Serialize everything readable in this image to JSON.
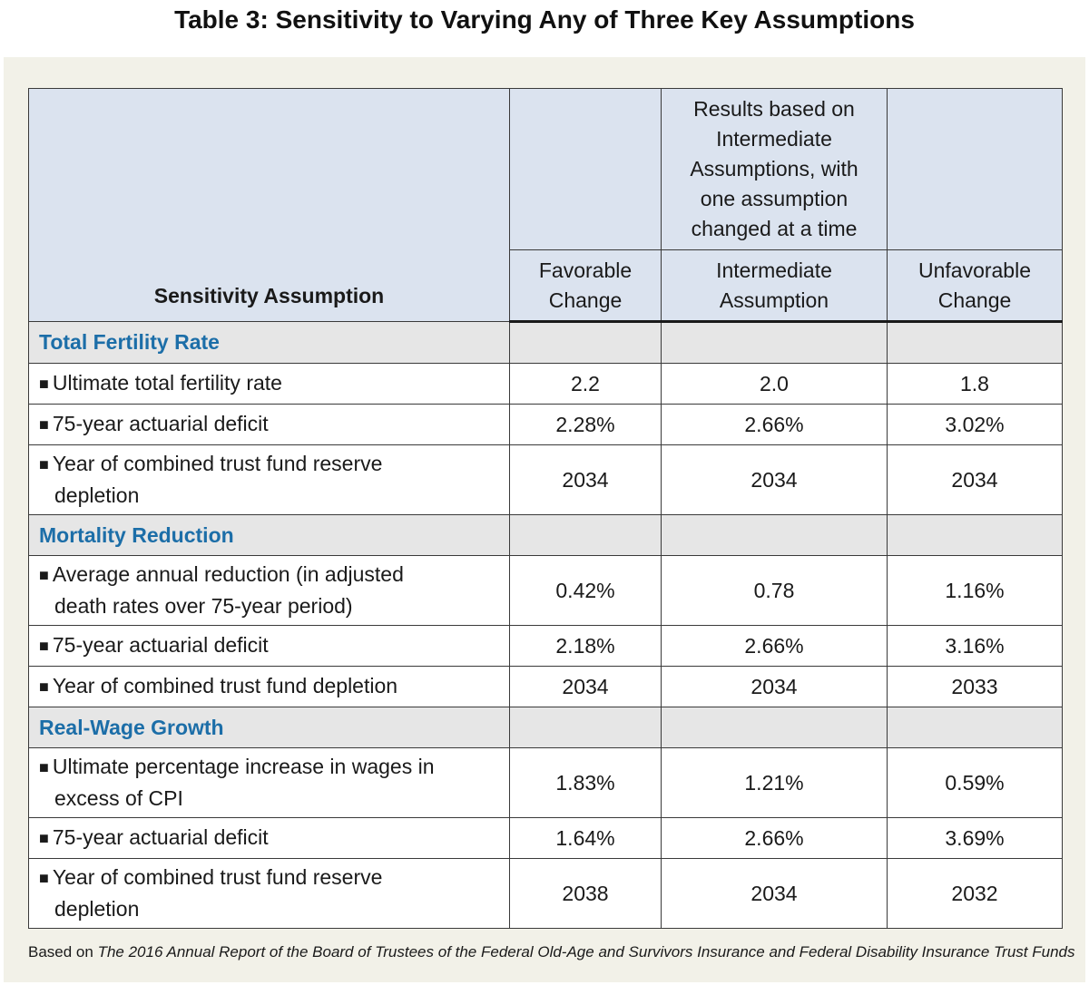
{
  "title": "Table 3: Sensitivity to Varying Any of Three Key Assumptions",
  "header": {
    "col1": "Sensitivity Assumption",
    "group_lines": [
      "Results based on",
      "Intermediate",
      "Assumptions, with",
      "one assumption",
      "changed at a time"
    ],
    "favorable": [
      "Favorable",
      "Change"
    ],
    "intermediate": [
      "Intermediate",
      "Assumption"
    ],
    "unfavorable": [
      "Unfavorable",
      "Change"
    ]
  },
  "bullet": "■",
  "sections": [
    {
      "name": "Total Fertility Rate",
      "rows": [
        {
          "label1": "Ultimate total fertility rate",
          "label2": "",
          "fav": "2.2",
          "int": "2.0",
          "unf": "1.8"
        },
        {
          "label1": "75-year actuarial deficit",
          "label2": "",
          "fav": "2.28%",
          "int": "2.66%",
          "unf": "3.02%"
        },
        {
          "label1": "Year of combined trust fund reserve",
          "label2": "depletion",
          "fav": "2034",
          "int": "2034",
          "unf": "2034"
        }
      ]
    },
    {
      "name": "Mortality Reduction",
      "rows": [
        {
          "label1": "Average annual reduction (in adjusted",
          "label2": "death rates over 75-year period)",
          "fav": "0.42%",
          "int": "0.78",
          "unf": "1.16%"
        },
        {
          "label1": "75-year actuarial deficit",
          "label2": "",
          "fav": "2.18%",
          "int": "2.66%",
          "unf": "3.16%"
        },
        {
          "label1": "Year of combined trust fund depletion",
          "label2": "",
          "fav": "2034",
          "int": "2034",
          "unf": "2033"
        }
      ]
    },
    {
      "name": "Real-Wage Growth",
      "rows": [
        {
          "label1": "Ultimate percentage increase in wages in",
          "label2": "excess of CPI",
          "fav": "1.83%",
          "int": "1.21%",
          "unf": "0.59%"
        },
        {
          "label1": "75-year actuarial deficit",
          "label2": "",
          "fav": "1.64%",
          "int": "2.66%",
          "unf": "3.69%"
        },
        {
          "label1": "Year of combined trust fund reserve",
          "label2": "depletion",
          "fav": "2038",
          "int": "2034",
          "unf": "2032"
        }
      ]
    }
  ],
  "footnote": {
    "prefix": "Based on ",
    "source": "The 2016 Annual Report of the Board of Trustees of the Federal Old-Age and Survivors Insurance and Federal Disability Insurance Trust Funds"
  },
  "colors": {
    "header_bg": "#dbe3ef",
    "section_bg": "#e6e6e6",
    "section_text": "#1c6ea8",
    "panel_bg": "#f2f1e8"
  }
}
